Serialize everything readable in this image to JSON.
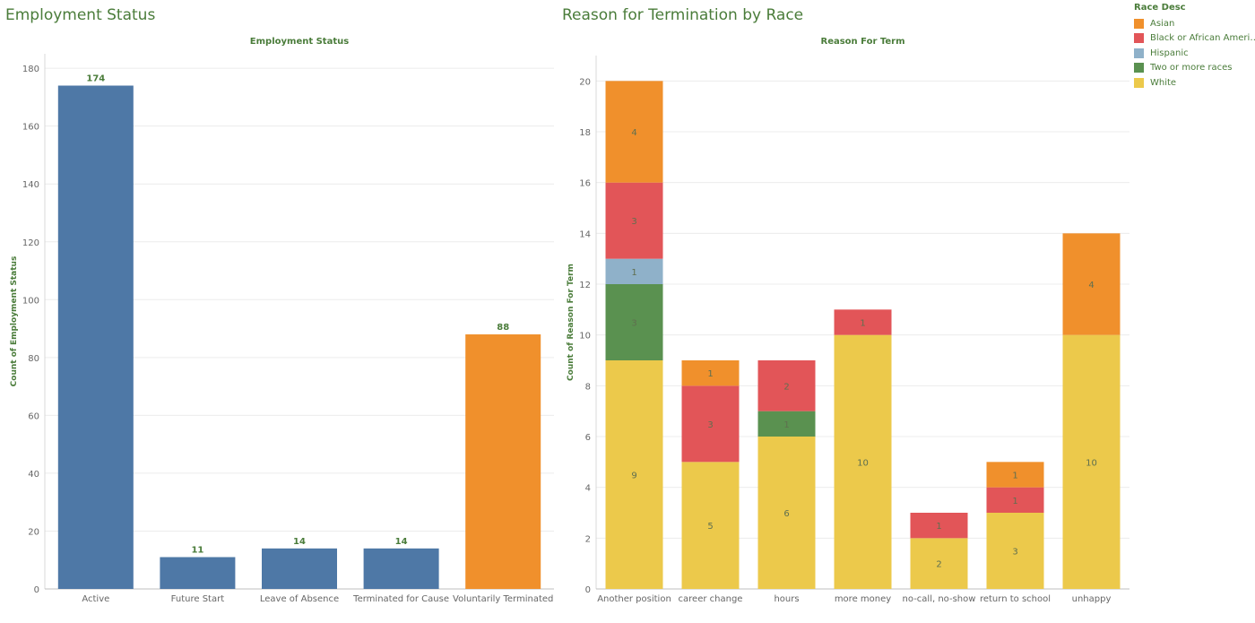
{
  "colors": {
    "blue": "#4e78a6",
    "orange": "#f0902c",
    "red": "#e25558",
    "teal": "#8fb1c9",
    "green": "#5a9150",
    "yellow": "#ecc94b",
    "text": "#4a7c3a",
    "axis": "#666666",
    "grid": "#ececec"
  },
  "chart_data": [
    {
      "type": "bar",
      "title": "Employment Status",
      "subtitle": "Employment Status",
      "xlabel": "",
      "ylabel": "Count of Employment Status",
      "ylim": [
        0,
        185
      ],
      "yticks": [
        0,
        20,
        40,
        60,
        80,
        100,
        120,
        140,
        160,
        180
      ],
      "categories": [
        "Active",
        "Future Start",
        "Leave of Absence",
        "Terminated for Cause",
        "Voluntarily Terminated"
      ],
      "values": [
        174,
        11,
        14,
        14,
        88
      ],
      "bar_colors": [
        "#4e78a6",
        "#4e78a6",
        "#4e78a6",
        "#4e78a6",
        "#f0902c"
      ]
    },
    {
      "type": "bar",
      "stacked": true,
      "title": "Reason for Termination by Race",
      "subtitle": "Reason For Term",
      "xlabel": "",
      "ylabel": "Count of Reason For Term",
      "ylim": [
        0,
        21
      ],
      "yticks": [
        0,
        2,
        4,
        6,
        8,
        10,
        12,
        14,
        16,
        18,
        20
      ],
      "categories": [
        "Another position",
        "career change",
        "hours",
        "more money",
        "no-call, no-show",
        "return to school",
        "unhappy"
      ],
      "legend_title": "Race Desc",
      "series": [
        {
          "name": "White",
          "color": "#ecc94b",
          "values": [
            9,
            5,
            6,
            10,
            2,
            3,
            10
          ]
        },
        {
          "name": "Two or more races",
          "color": "#5a9150",
          "values": [
            3,
            0,
            1,
            0,
            0,
            0,
            0
          ]
        },
        {
          "name": "Hispanic",
          "color": "#8fb1c9",
          "values": [
            1,
            0,
            0,
            0,
            0,
            0,
            0
          ]
        },
        {
          "name": "Black or African American",
          "color": "#e25558",
          "values": [
            3,
            3,
            2,
            1,
            1,
            1,
            0
          ]
        },
        {
          "name": "Asian",
          "color": "#f0902c",
          "values": [
            4,
            1,
            0,
            0,
            0,
            1,
            4
          ]
        }
      ],
      "legend_order": [
        "Asian",
        "Black or African American",
        "Hispanic",
        "Two or more races",
        "White"
      ]
    }
  ]
}
